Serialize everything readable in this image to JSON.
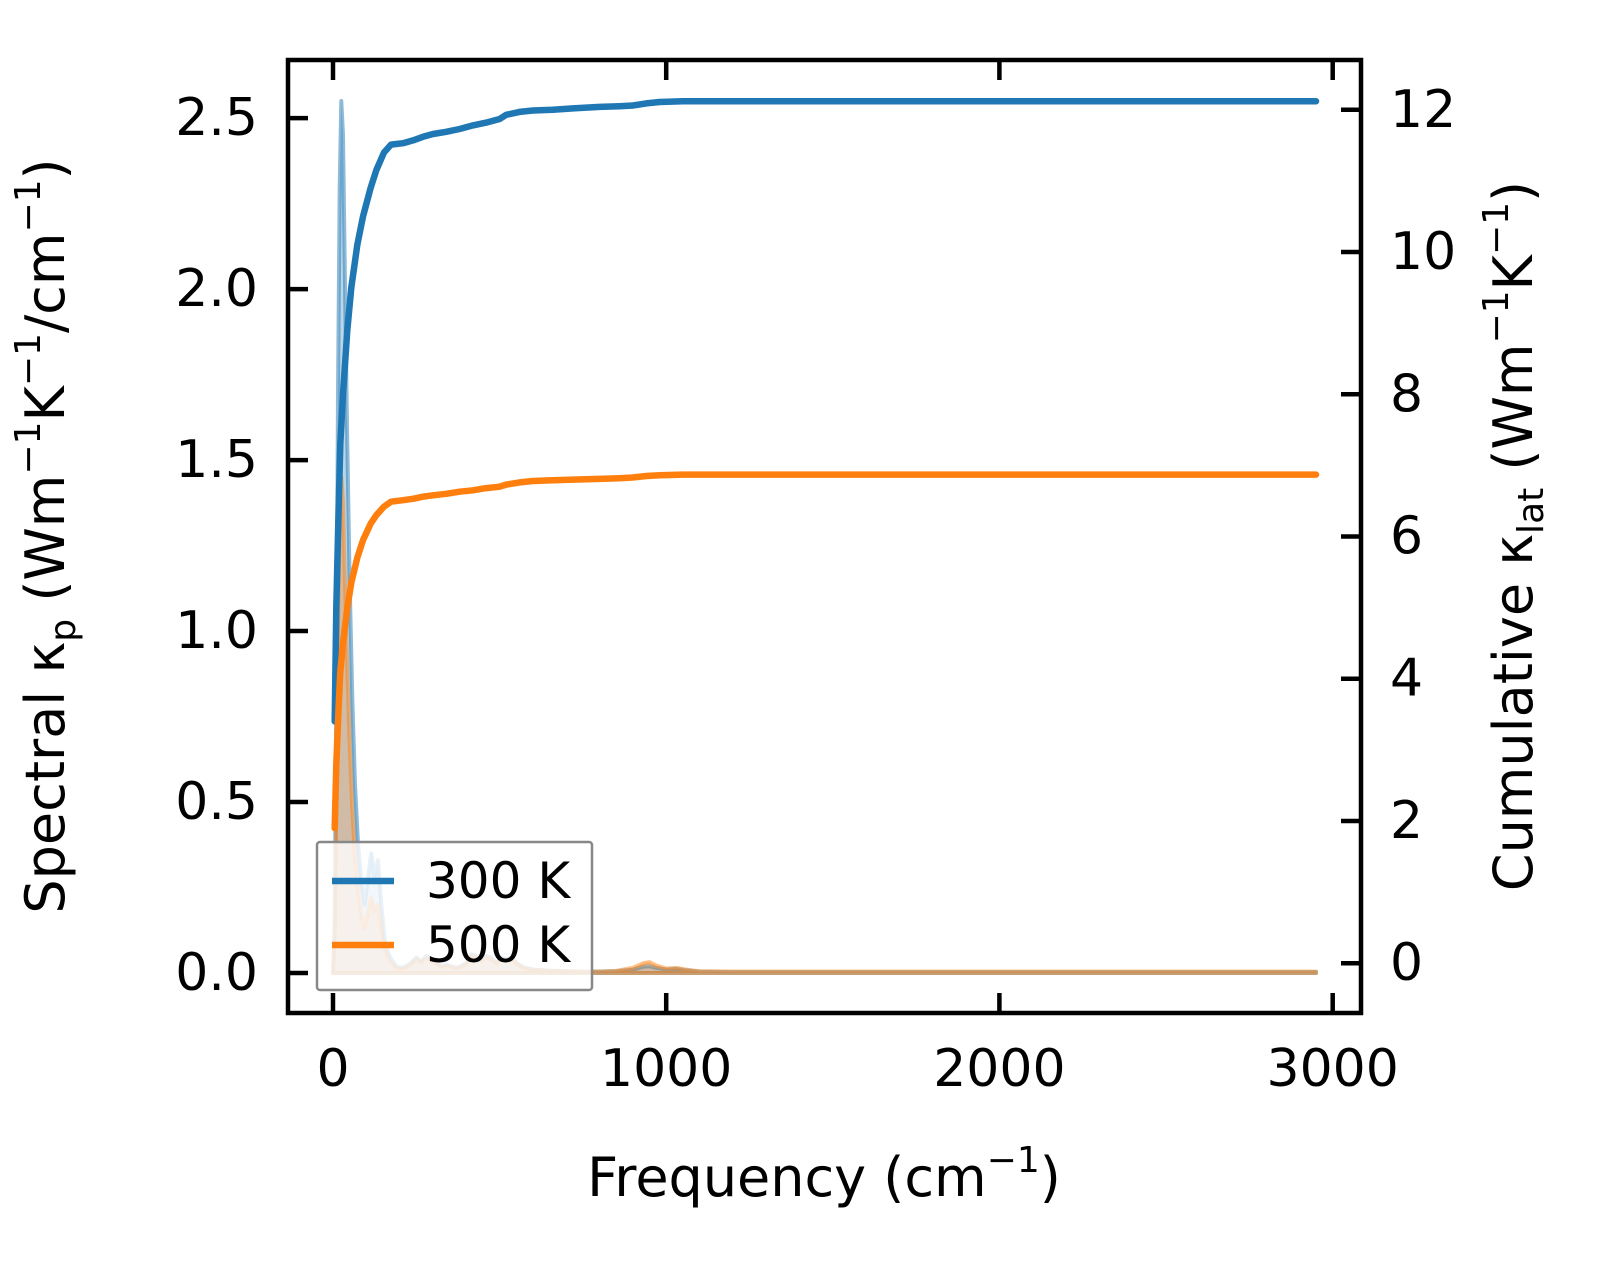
{
  "figure": {
    "background": "#ffffff",
    "axis_color": "#000000"
  },
  "chart_data": {
    "type": "line",
    "title": "",
    "xlabel": "Frequency (cm−1)",
    "xlabel_parts": [
      {
        "t": "Frequency (cm"
      },
      {
        "t": "−1",
        "sup": true
      },
      {
        "t": ")"
      }
    ],
    "ylabel_left": "Spectral κp (Wm−1K−1/cm−1)",
    "ylabel_left_parts": [
      {
        "t": "Spectral κ"
      },
      {
        "t": "p",
        "sub": true
      },
      {
        "t": " (Wm"
      },
      {
        "t": "−1",
        "sup": true
      },
      {
        "t": "K"
      },
      {
        "t": "−1",
        "sup": true
      },
      {
        "t": "/cm"
      },
      {
        "t": "−1",
        "sup": true
      },
      {
        "t": ")"
      }
    ],
    "ylabel_right": "Cumulative κlat (Wm−1K−1)",
    "ylabel_right_parts": [
      {
        "t": "Cumulative κ"
      },
      {
        "t": "lat",
        "sub": true
      },
      {
        "t": " (Wm"
      },
      {
        "t": "−1",
        "sup": true
      },
      {
        "t": "K"
      },
      {
        "t": "−1",
        "sup": true
      },
      {
        "t": ")"
      }
    ],
    "xlim": [
      -135,
      3085
    ],
    "ylim_left": [
      -0.117,
      2.67
    ],
    "ylim_right": [
      -0.7,
      12.7
    ],
    "xticks": {
      "values": [
        0,
        1000,
        2000,
        3000
      ],
      "labels": [
        "0",
        "1000",
        "2000",
        "3000"
      ]
    },
    "yticks_left": {
      "values": [
        0,
        0.5,
        1.0,
        1.5,
        2.0,
        2.5
      ],
      "labels": [
        "0.0",
        "0.5",
        "1.0",
        "1.5",
        "2.0",
        "2.5"
      ]
    },
    "yticks_right": {
      "values": [
        0,
        2,
        4,
        6,
        8,
        10,
        12
      ],
      "labels": [
        "0",
        "2",
        "4",
        "6",
        "8",
        "10",
        "12"
      ]
    },
    "grid": false,
    "legend": {
      "position": "lower left",
      "border_color": "#888888",
      "background": "#ffffff",
      "background_alpha": 0.8,
      "entries": [
        {
          "label": "300 K",
          "color": "#1f77b4"
        },
        {
          "label": "500 K",
          "color": "#ff7f0e"
        }
      ]
    },
    "series": [
      {
        "name": "spectral-300k",
        "legend_label": "300 K",
        "axis": "left",
        "style": "area",
        "color": "#1f77b4",
        "fill_alpha": 0.3,
        "edge_alpha": 0.5,
        "x": [
          0,
          5,
          10,
          15,
          20,
          25,
          30,
          35,
          42,
          50,
          58,
          66,
          75,
          85,
          95,
          105,
          115,
          125,
          135,
          145,
          155,
          165,
          175,
          190,
          205,
          220,
          235,
          250,
          265,
          280,
          295,
          310,
          325,
          340,
          355,
          370,
          385,
          400,
          415,
          430,
          445,
          460,
          475,
          490,
          505,
          520,
          535,
          550,
          565,
          580,
          600,
          650,
          700,
          750,
          800,
          850,
          900,
          930,
          950,
          970,
          1000,
          1030,
          1060,
          1100,
          1200,
          1500,
          2000,
          2500,
          2950
        ],
        "y": [
          0,
          0.15,
          0.8,
          1.7,
          2.3,
          2.55,
          2.45,
          2.1,
          1.6,
          1.15,
          0.8,
          0.55,
          0.38,
          0.27,
          0.2,
          0.28,
          0.35,
          0.28,
          0.33,
          0.2,
          0.1,
          0.06,
          0.04,
          0.02,
          0.015,
          0.02,
          0.03,
          0.045,
          0.035,
          0.05,
          0.04,
          0.03,
          0.02,
          0.025,
          0.02,
          0.015,
          0.02,
          0.03,
          0.055,
          0.05,
          0.04,
          0.05,
          0.045,
          0.03,
          0.045,
          0.04,
          0.045,
          0.03,
          0.02,
          0.015,
          0.01,
          0.007,
          0.005,
          0.004,
          0.004,
          0.005,
          0.01,
          0.018,
          0.02,
          0.015,
          0.01,
          0.012,
          0.008,
          0.004,
          0.003,
          0.003,
          0.003,
          0.003,
          0.003
        ]
      },
      {
        "name": "spectral-500k",
        "legend_label": "500 K",
        "axis": "left",
        "style": "area",
        "color": "#ff7f0e",
        "fill_alpha": 0.3,
        "edge_alpha": 0.5,
        "x": [
          0,
          5,
          10,
          15,
          20,
          25,
          30,
          35,
          42,
          50,
          58,
          66,
          75,
          85,
          95,
          105,
          115,
          125,
          135,
          145,
          155,
          165,
          175,
          190,
          205,
          220,
          235,
          250,
          265,
          280,
          295,
          310,
          325,
          340,
          355,
          370,
          385,
          400,
          415,
          430,
          445,
          460,
          475,
          490,
          505,
          520,
          535,
          550,
          565,
          580,
          600,
          650,
          700,
          750,
          800,
          850,
          900,
          930,
          950,
          970,
          1000,
          1030,
          1060,
          1100,
          1200,
          1500,
          2000,
          2500,
          2950
        ],
        "y": [
          0,
          0.1,
          0.5,
          1.0,
          1.32,
          1.45,
          1.38,
          1.18,
          0.92,
          0.68,
          0.48,
          0.34,
          0.24,
          0.17,
          0.13,
          0.18,
          0.22,
          0.18,
          0.2,
          0.13,
          0.07,
          0.04,
          0.03,
          0.015,
          0.01,
          0.015,
          0.025,
          0.04,
          0.03,
          0.045,
          0.035,
          0.025,
          0.018,
          0.02,
          0.017,
          0.013,
          0.018,
          0.025,
          0.05,
          0.045,
          0.035,
          0.045,
          0.04,
          0.028,
          0.04,
          0.035,
          0.04,
          0.028,
          0.018,
          0.013,
          0.009,
          0.006,
          0.005,
          0.004,
          0.004,
          0.006,
          0.015,
          0.028,
          0.032,
          0.022,
          0.013,
          0.015,
          0.01,
          0.005,
          0.004,
          0.004,
          0.004,
          0.004,
          0.004
        ]
      },
      {
        "name": "cumulative-300k",
        "legend_label": "300 K",
        "axis": "right",
        "style": "line",
        "color": "#1f77b4",
        "x": [
          5,
          10,
          16,
          22,
          30,
          43,
          55,
          73,
          90,
          113,
          130,
          153,
          174,
          210,
          240,
          270,
          300,
          340,
          380,
          420,
          460,
          500,
          520,
          560,
          600,
          660,
          720,
          800,
          860,
          900,
          940,
          980,
          1050,
          1200,
          1600,
          2000,
          2400,
          2950
        ],
        "y": [
          3.4,
          5.0,
          6.2,
          7.3,
          8.0,
          8.9,
          9.5,
          10.1,
          10.5,
          10.9,
          11.15,
          11.4,
          11.51,
          11.53,
          11.57,
          11.62,
          11.66,
          11.69,
          11.73,
          11.78,
          11.82,
          11.87,
          11.93,
          11.97,
          11.99,
          12.0,
          12.02,
          12.04,
          12.05,
          12.06,
          12.09,
          12.11,
          12.12,
          12.12,
          12.12,
          12.12,
          12.12,
          12.12
        ]
      },
      {
        "name": "cumulative-500k",
        "legend_label": "500 K",
        "axis": "right",
        "style": "line",
        "color": "#ff7f0e",
        "x": [
          5,
          10,
          16,
          22,
          30,
          43,
          55,
          73,
          90,
          113,
          130,
          153,
          174,
          210,
          240,
          270,
          300,
          340,
          380,
          420,
          460,
          500,
          520,
          560,
          600,
          660,
          720,
          800,
          860,
          900,
          940,
          980,
          1050,
          1200,
          1600,
          2000,
          2400,
          2950
        ],
        "y": [
          1.9,
          2.8,
          3.5,
          4.1,
          4.5,
          5.0,
          5.35,
          5.7,
          5.95,
          6.18,
          6.3,
          6.42,
          6.49,
          6.51,
          6.53,
          6.56,
          6.58,
          6.6,
          6.63,
          6.65,
          6.68,
          6.7,
          6.73,
          6.76,
          6.78,
          6.79,
          6.8,
          6.81,
          6.82,
          6.83,
          6.85,
          6.86,
          6.87,
          6.87,
          6.87,
          6.87,
          6.87,
          6.87
        ]
      }
    ]
  }
}
